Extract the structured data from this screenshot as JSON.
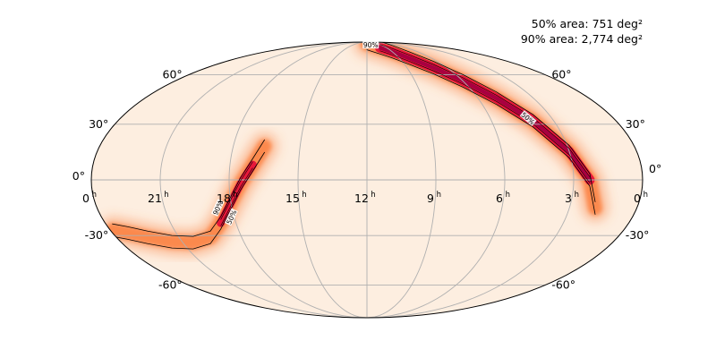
{
  "chart_data": {
    "type": "heatmap",
    "projection": "mollweide",
    "title": "",
    "coordinates": "equatorial",
    "colormap": "cylon",
    "colors": {
      "background": "#fdeee0",
      "map_low": "#fdeee0",
      "map_mid": "#fb8040",
      "map_high": "#e8183a",
      "map_peak": "#a80040",
      "grid": "#b0b0b0",
      "contour": "#000000"
    },
    "grid": true,
    "area_annotations": [
      "50% area: 751 deg²",
      "90% area: 2,774 deg²"
    ],
    "contour_levels": [
      {
        "label": "50%",
        "probability": 0.5
      },
      {
        "label": "90%",
        "probability": 0.9
      }
    ],
    "ra_ticks": [
      {
        "label": "0",
        "unit": "h",
        "ra_hours": 24
      },
      {
        "label": "21",
        "unit": "h",
        "ra_hours": 21
      },
      {
        "label": "18",
        "unit": "h",
        "ra_hours": 18
      },
      {
        "label": "15",
        "unit": "h",
        "ra_hours": 15
      },
      {
        "label": "12",
        "unit": "h",
        "ra_hours": 12
      },
      {
        "label": "9",
        "unit": "h",
        "ra_hours": 9
      },
      {
        "label": "6",
        "unit": "h",
        "ra_hours": 6
      },
      {
        "label": "3",
        "unit": "h",
        "ra_hours": 3
      },
      {
        "label": "0",
        "unit": "h",
        "ra_hours": 0
      }
    ],
    "dec_ticks_left": [
      {
        "label": "60°",
        "dec": 60
      },
      {
        "label": "30°",
        "dec": 30
      },
      {
        "label": "0°",
        "dec": 0
      },
      {
        "label": "-30°",
        "dec": -30
      },
      {
        "label": "-60°",
        "dec": -60
      }
    ],
    "dec_ticks_right": [
      {
        "label": "60°",
        "dec": 60
      },
      {
        "label": "30°",
        "dec": 30
      },
      {
        "label": "0°",
        "dec": 0
      },
      {
        "label": "-30°",
        "dec": -30
      },
      {
        "label": "-60°",
        "dec": -60
      }
    ],
    "probability_arcs": [
      {
        "name": "north",
        "ra_hours": [
          1.85,
          2.3,
          3.0,
          4.0,
          5.0,
          6.0,
          7.0,
          8.0,
          9.0,
          10.0,
          11.0,
          12.0
        ],
        "dec_deg": [
          -15,
          0,
          15,
          32,
          45,
          56,
          65,
          72,
          78,
          82,
          85,
          87
        ],
        "prob_peak": 1.0,
        "core_start_index": 1,
        "core_end_index": 9
      },
      {
        "name": "south",
        "ra_hours": [
          16.6,
          17.0,
          17.5,
          18.0,
          18.7,
          19.5,
          20.5,
          21.5,
          22.5,
          23.3,
          23.9
        ],
        "dec_deg": [
          18,
          8,
          -2,
          -12,
          -23,
          -31,
          -34,
          -33.5,
          -31,
          -28.5,
          -27
        ],
        "prob_peak": 0.78,
        "core_start_index": 1,
        "core_end_index": 4
      }
    ]
  }
}
